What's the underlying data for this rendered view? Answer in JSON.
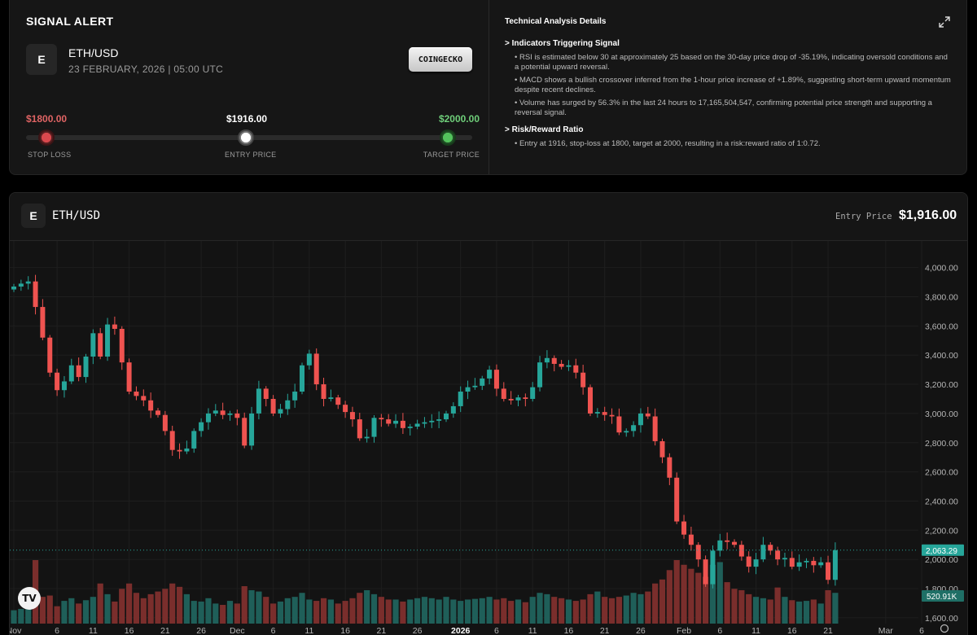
{
  "signal": {
    "title": "SIGNAL ALERT",
    "logo_letter": "E",
    "pair": "ETH/USD",
    "datetime": "23 FEBRUARY, 2026 | 05:00 UTC",
    "source_button": "COINGECKO",
    "stop_loss": {
      "value": "$1800.00",
      "label": "STOP LOSS",
      "color": "#e06464"
    },
    "entry": {
      "value": "$1916.00",
      "label": "ENTRY PRICE",
      "color": "#ffffff"
    },
    "target": {
      "value": "$2000.00",
      "label": "TARGET PRICE",
      "color": "#6fcf7a"
    }
  },
  "analysis": {
    "title": "Technical Analysis Details",
    "expand_icon": "expand-icon",
    "indicators_heading": "> Indicators Triggering Signal",
    "indicators": [
      "• RSI is estimated below 30 at approximately 25 based on the 30-day price drop of -35.19%, indicating oversold conditions and a potential upward reversal.",
      "• MACD shows a bullish crossover inferred from the 1-hour price increase of +1.89%, suggesting short-term upward momentum despite recent declines.",
      "• Volume has surged by 56.3% in the last 24 hours to 17,165,504,547, confirming potential price strength and supporting a reversal signal."
    ],
    "risk_heading": "> Risk/Reward Ratio",
    "risk_items": [
      "• Entry at 1916, stop-loss at 1800, target at 2000, resulting in a risk:reward ratio of 1:0.72."
    ]
  },
  "chart_header": {
    "logo_letter": "E",
    "pair": "ETH/USD",
    "entry_label": "Entry Price",
    "entry_value": "$1,916.00"
  },
  "chart_data": {
    "type": "candlestick",
    "colors": {
      "up": "#26a69a",
      "down": "#ef5350",
      "up_vol": "#1f5f59",
      "down_vol": "#7a2e2c",
      "grid": "#1e1e1e"
    },
    "ylim": [
      1560,
      4160
    ],
    "y_ticks": [
      4000,
      3800,
      3600,
      3400,
      3200,
      3000,
      2800,
      2600,
      2400,
      2200,
      2000,
      1800,
      1600
    ],
    "y_tick_labels": [
      "4,000.00",
      "3,800.00",
      "3,600.00",
      "3,400.00",
      "3,200.00",
      "3,000.00",
      "2,800.00",
      "2,600.00",
      "2,400.00",
      "2,200.00",
      "2,000.00",
      "1,800.00",
      "1,600.00"
    ],
    "x_ticks": [
      {
        "label": "Nov",
        "i": 0
      },
      {
        "label": "6",
        "i": 6
      },
      {
        "label": "11",
        "i": 11
      },
      {
        "label": "16",
        "i": 16
      },
      {
        "label": "21",
        "i": 21
      },
      {
        "label": "26",
        "i": 26
      },
      {
        "label": "Dec",
        "i": 31
      },
      {
        "label": "6",
        "i": 36
      },
      {
        "label": "11",
        "i": 41
      },
      {
        "label": "16",
        "i": 46
      },
      {
        "label": "21",
        "i": 51
      },
      {
        "label": "26",
        "i": 56
      },
      {
        "label": "2026",
        "i": 62
      },
      {
        "label": "6",
        "i": 67
      },
      {
        "label": "11",
        "i": 72
      },
      {
        "label": "16",
        "i": 77
      },
      {
        "label": "21",
        "i": 82
      },
      {
        "label": "26",
        "i": 87
      },
      {
        "label": "Feb",
        "i": 93
      },
      {
        "label": "6",
        "i": 98
      },
      {
        "label": "11",
        "i": 103
      },
      {
        "label": "16",
        "i": 108
      },
      {
        "label": "21",
        "i": 113
      },
      {
        "label": "Mar",
        "i": 121
      },
      {
        "label": "6",
        "i": 126
      }
    ],
    "last_price_label": "2,063.29",
    "last_price": 2063.29,
    "volume_label": "520.91K",
    "closes": [
      3870,
      3890,
      3905,
      3730,
      3520,
      3280,
      3160,
      3220,
      3330,
      3250,
      3390,
      3550,
      3390,
      3610,
      3580,
      3350,
      3150,
      3120,
      3090,
      3020,
      2990,
      2880,
      2750,
      2740,
      2760,
      2880,
      2940,
      3000,
      3020,
      2990,
      3000,
      2970,
      2780,
      3000,
      3170,
      3100,
      3000,
      3030,
      3090,
      3150,
      3330,
      3410,
      3200,
      3100,
      3110,
      3060,
      3010,
      2960,
      2830,
      2840,
      2970,
      2960,
      2930,
      2950,
      2900,
      2910,
      2930,
      2940,
      2950,
      2960,
      3000,
      3050,
      3150,
      3180,
      3190,
      3240,
      3300,
      3170,
      3100,
      3090,
      3110,
      3100,
      3180,
      3350,
      3380,
      3340,
      3320,
      3330,
      3280,
      3180,
      3000,
      3010,
      2990,
      2980,
      2870,
      2880,
      2920,
      3000,
      2980,
      2810,
      2700,
      2560,
      2260,
      2170,
      2100,
      2000,
      1830,
      2060,
      2130,
      2120,
      2100,
      2020,
      1950,
      2000,
      2100,
      2060,
      2000,
      2010,
      1950,
      1980,
      1990,
      1960,
      1980,
      1860,
      2063
    ],
    "volumes": [
      20,
      22,
      38,
      95,
      40,
      42,
      26,
      34,
      38,
      30,
      35,
      40,
      60,
      44,
      33,
      52,
      60,
      46,
      38,
      44,
      48,
      52,
      60,
      55,
      44,
      34,
      33,
      38,
      30,
      28,
      34,
      30,
      56,
      50,
      48,
      40,
      30,
      33,
      38,
      40,
      46,
      36,
      34,
      38,
      36,
      30,
      34,
      38,
      46,
      50,
      44,
      40,
      36,
      36,
      33,
      36,
      38,
      40,
      38,
      36,
      40,
      36,
      34,
      36,
      37,
      38,
      40,
      36,
      38,
      34,
      36,
      32,
      40,
      46,
      44,
      40,
      38,
      36,
      34,
      36,
      44,
      48,
      40,
      38,
      40,
      42,
      46,
      44,
      48,
      60,
      66,
      80,
      95,
      88,
      82,
      76,
      70,
      88,
      92,
      62,
      52,
      50,
      44,
      40,
      38,
      36,
      54,
      40,
      35,
      33,
      34,
      36,
      30,
      50,
      46
    ]
  }
}
